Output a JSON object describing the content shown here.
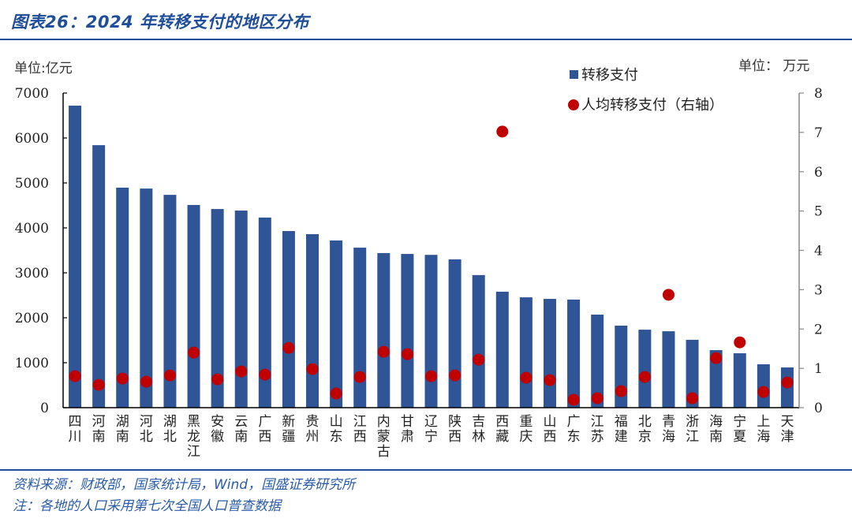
{
  "header": {
    "title": "图表26：2024 年转移支付的地区分布",
    "left_unit": "单位:亿元",
    "right_unit": "单位： 万元"
  },
  "legend": {
    "bar_label": "转移支付",
    "dot_label": "人均转移支付（右轴）"
  },
  "footer": {
    "source": "资料来源：财政部，国家统计局，Wind，国盛证券研究所",
    "note": "注：各地的人口采用第七次全国人口普查数据"
  },
  "colors": {
    "bar": "#2f5597",
    "dot": "#c00000",
    "title": "#1f4e9a"
  },
  "chart_data": {
    "type": "bar",
    "title": "2024 年转移支付的地区分布",
    "xlabel": "",
    "ylabel": "单位:亿元",
    "y2label": "单位：万元",
    "ylim": [
      0,
      7000
    ],
    "y2lim": [
      0,
      8
    ],
    "yticks": [
      0,
      1000,
      2000,
      3000,
      4000,
      5000,
      6000,
      7000
    ],
    "y2ticks": [
      0,
      1,
      2,
      3,
      4,
      5,
      6,
      7,
      8
    ],
    "grid": false,
    "legend_position": "top-right",
    "categories": [
      "四川",
      "河南",
      "湖南",
      "河北",
      "湖北",
      "黑龙江",
      "安徽",
      "云南",
      "广西",
      "新疆",
      "贵州",
      "山东",
      "江西",
      "内蒙古",
      "甘肃",
      "辽宁",
      "陕西",
      "吉林",
      "西藏",
      "重庆",
      "山西",
      "广东",
      "江苏",
      "福建",
      "北京",
      "青海",
      "浙江",
      "海南",
      "宁夏",
      "上海",
      "天津"
    ],
    "series": [
      {
        "name": "转移支付",
        "type": "bar",
        "axis": "left",
        "values": [
          6720,
          5840,
          4895,
          4875,
          4735,
          4510,
          4420,
          4385,
          4230,
          3930,
          3860,
          3720,
          3560,
          3440,
          3420,
          3400,
          3300,
          2950,
          2580,
          2455,
          2420,
          2405,
          2070,
          1825,
          1735,
          1700,
          1510,
          1280,
          1210,
          965,
          895
        ]
      },
      {
        "name": "人均转移支付（右轴）",
        "type": "scatter",
        "axis": "right",
        "values": [
          0.8,
          0.58,
          0.74,
          0.66,
          0.82,
          1.4,
          0.72,
          0.92,
          0.84,
          1.52,
          0.98,
          0.36,
          0.78,
          1.42,
          1.36,
          0.8,
          0.82,
          1.22,
          7.02,
          0.76,
          0.7,
          0.2,
          0.24,
          0.42,
          0.78,
          2.87,
          0.24,
          1.26,
          1.66,
          0.4,
          0.64
        ]
      }
    ]
  }
}
